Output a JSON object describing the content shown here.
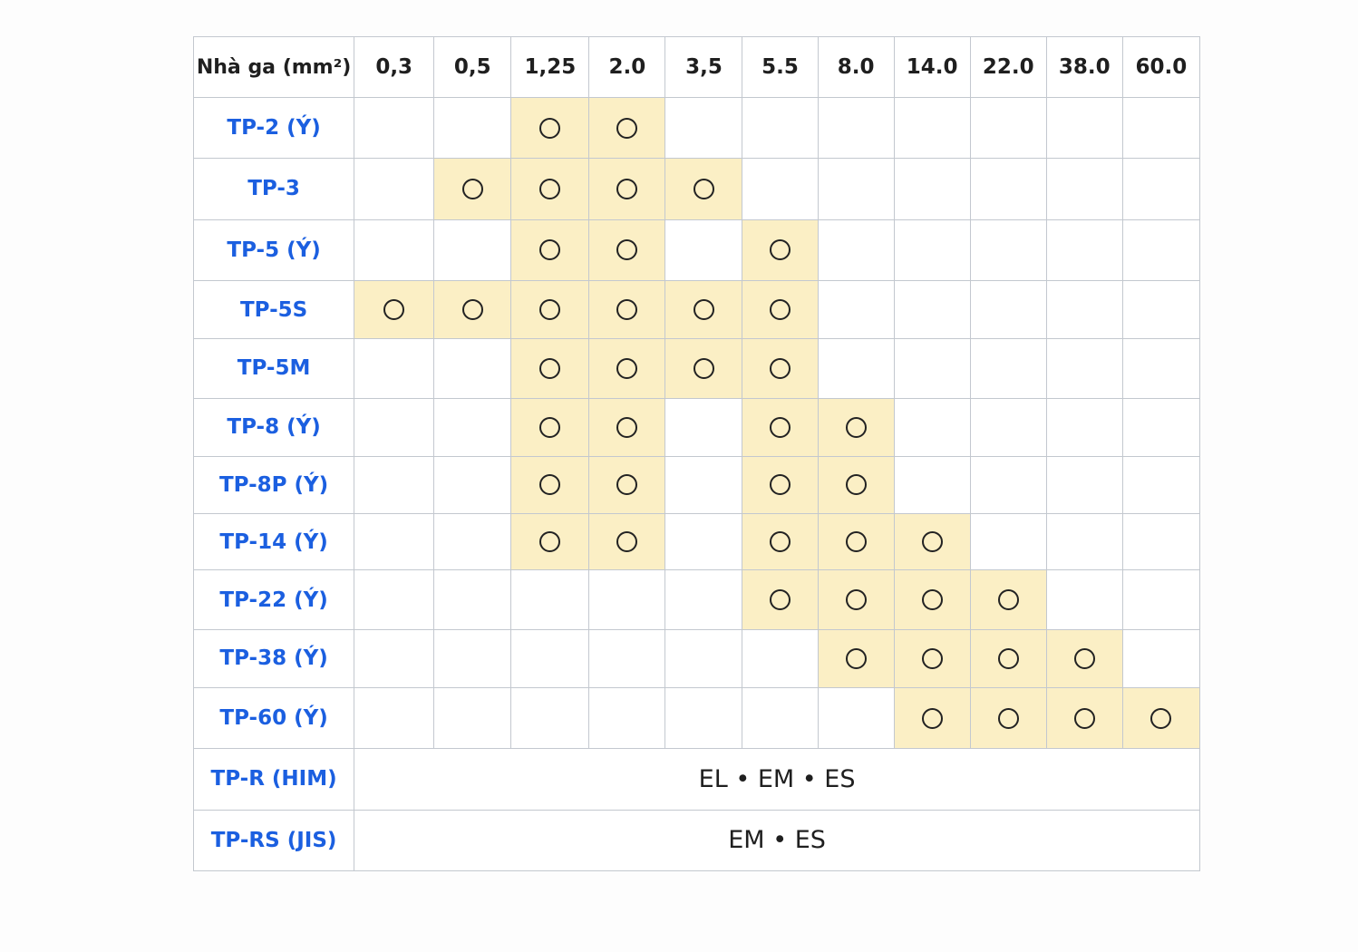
{
  "table": {
    "header_label": "Nhà ga (mm²)",
    "columns": [
      "0,3",
      "0,5",
      "1,25",
      "2.0",
      "3,5",
      "5.5",
      "8.0",
      "14.0",
      "22.0",
      "38.0",
      "60.0"
    ],
    "mark_symbol": "circle",
    "highlight_color": "#fbefc5",
    "label_color": "#1b5fe0",
    "rows": [
      {
        "label": "TP-2 (Ý)",
        "marks": [
          "1,25",
          "2.0"
        ]
      },
      {
        "label": "TP-3",
        "marks": [
          "0,5",
          "1,25",
          "2.0",
          "3,5"
        ]
      },
      {
        "label": "TP-5 (Ý)",
        "marks": [
          "1,25",
          "2.0",
          "5.5"
        ]
      },
      {
        "label": "TP-5S",
        "marks": [
          "0,3",
          "0,5",
          "1,25",
          "2.0",
          "3,5",
          "5.5"
        ]
      },
      {
        "label": "TP-5M",
        "marks": [
          "1,25",
          "2.0",
          "3,5",
          "5.5"
        ]
      },
      {
        "label": "TP-8 (Ý)",
        "marks": [
          "1,25",
          "2.0",
          "5.5",
          "8.0"
        ]
      },
      {
        "label": "TP-8P (Ý)",
        "marks": [
          "1,25",
          "2.0",
          "5.5",
          "8.0"
        ]
      },
      {
        "label": "TP-14 (Ý)",
        "marks": [
          "1,25",
          "2.0",
          "5.5",
          "8.0",
          "14.0"
        ]
      },
      {
        "label": "TP-22 (Ý)",
        "marks": [
          "5.5",
          "8.0",
          "14.0",
          "22.0"
        ]
      },
      {
        "label": "TP-38 (Ý)",
        "marks": [
          "8.0",
          "14.0",
          "22.0",
          "38.0"
        ]
      },
      {
        "label": "TP-60 (Ý)",
        "marks": [
          "14.0",
          "22.0",
          "38.0",
          "60.0"
        ]
      }
    ],
    "span_rows": [
      {
        "label": "TP-R (HIM)",
        "text": "EL • EM • ES"
      },
      {
        "label": "TP-RS (JIS)",
        "text": "EM • ES"
      }
    ]
  }
}
